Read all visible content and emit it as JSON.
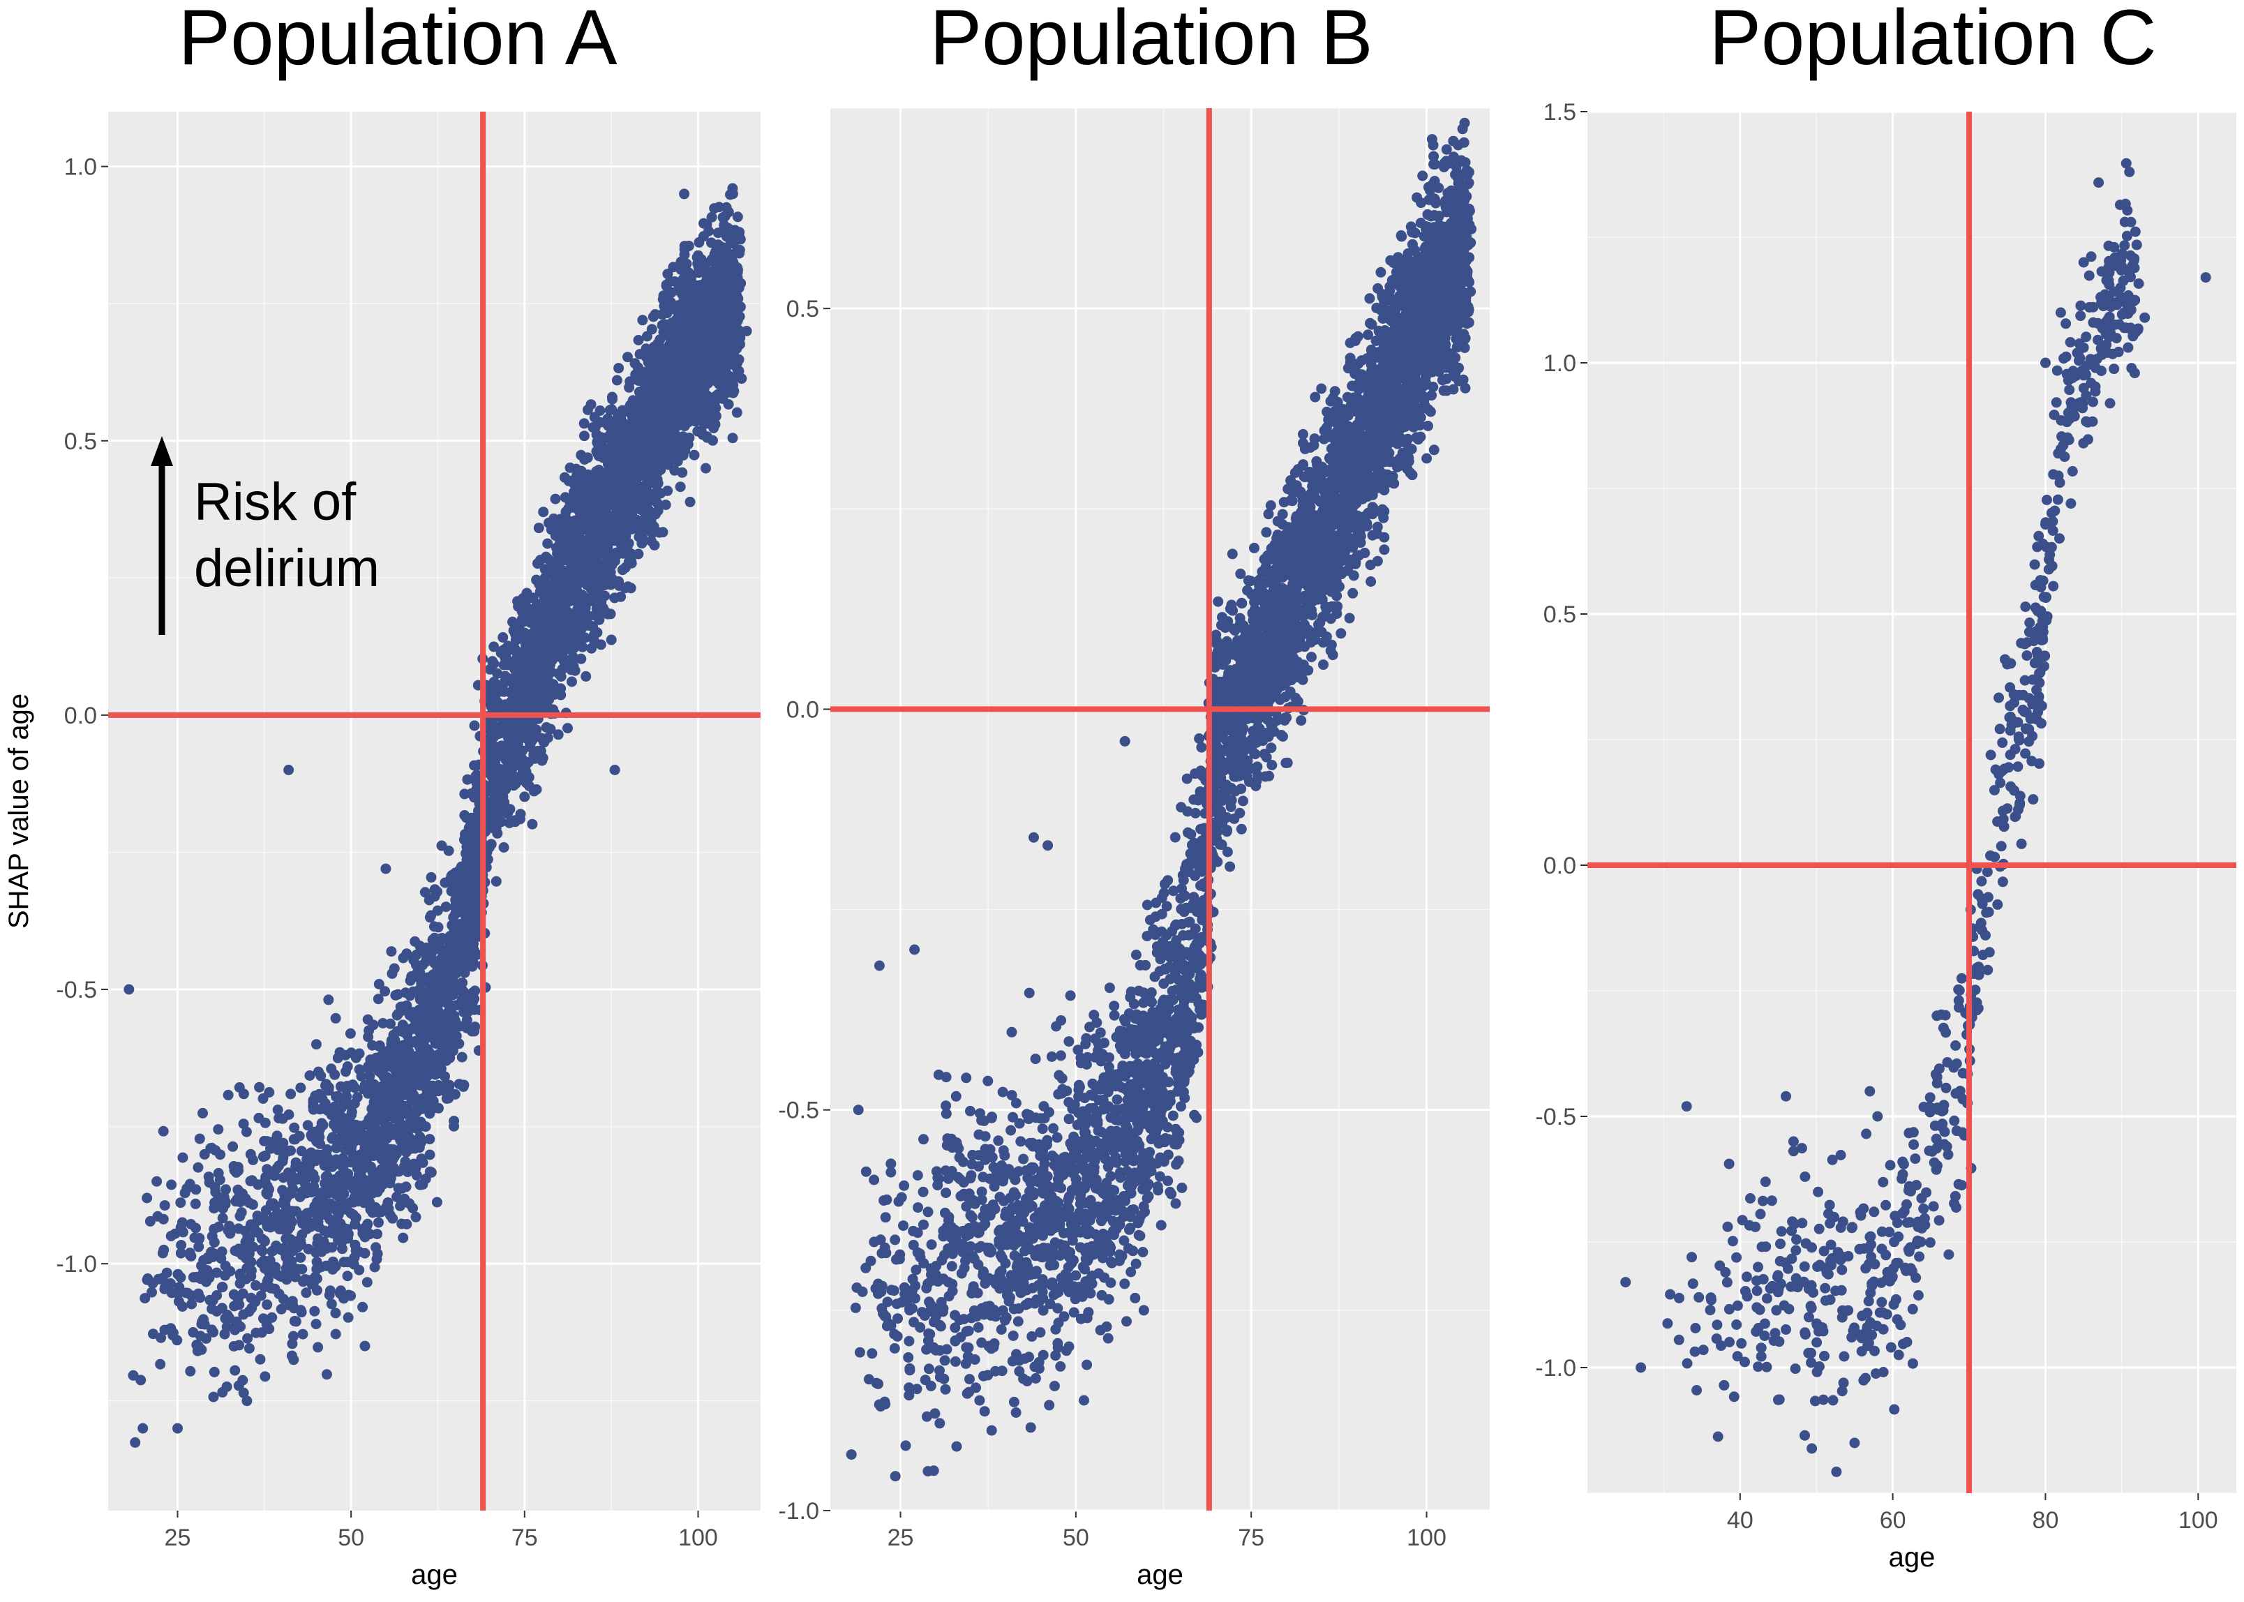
{
  "colors": {
    "panel_background": "#ebebeb",
    "grid_major": "#ffffff",
    "points": "#3b4f8a",
    "reference_lines": "#ef5350",
    "tick_labels": "#4d4d4d",
    "text": "#000000"
  },
  "annotation": {
    "text_line1": "Risk of",
    "text_line2": "delirium",
    "arrow_icon": "up-arrow-icon"
  },
  "chart_data": [
    {
      "type": "scatter",
      "title": "Population A",
      "xlabel": "age",
      "ylabel": "SHAP value of age",
      "xlim": [
        15,
        109
      ],
      "ylim": [
        -1.45,
        1.1
      ],
      "x_ticks": [
        25,
        50,
        75,
        100
      ],
      "x_tick_labels": [
        "25",
        "50",
        "75",
        "100"
      ],
      "y_ticks": [
        -1.0,
        -0.5,
        0.0,
        0.5,
        1.0
      ],
      "y_tick_labels": [
        "-1.0",
        "-0.5",
        "0.0",
        "0.5",
        "1.0"
      ],
      "grid": true,
      "vline_x": 69,
      "hline_y": 0,
      "trend": [
        [
          18,
          -1.05
        ],
        [
          30,
          -0.98
        ],
        [
          40,
          -0.92
        ],
        [
          50,
          -0.83
        ],
        [
          55,
          -0.73
        ],
        [
          60,
          -0.62
        ],
        [
          65,
          -0.46
        ],
        [
          68,
          -0.32
        ],
        [
          70,
          -0.08
        ],
        [
          75,
          0.03
        ],
        [
          80,
          0.2
        ],
        [
          85,
          0.34
        ],
        [
          90,
          0.44
        ],
        [
          95,
          0.58
        ],
        [
          100,
          0.68
        ],
        [
          106,
          0.76
        ]
      ],
      "n_points": 4500,
      "points_sample": [
        [
          18,
          -0.5
        ],
        [
          20,
          -1.3
        ],
        [
          22,
          -0.85
        ],
        [
          25,
          -1.3
        ],
        [
          30,
          -0.95
        ],
        [
          35,
          -1.25
        ],
        [
          41,
          -0.1
        ],
        [
          45,
          -0.6
        ],
        [
          52,
          -1.15
        ],
        [
          55,
          -0.28
        ],
        [
          60,
          -0.75
        ],
        [
          65,
          -0.35
        ],
        [
          70,
          0.05
        ],
        [
          75,
          -0.02
        ],
        [
          80,
          0.26
        ],
        [
          85,
          0.38
        ],
        [
          88,
          -0.1
        ],
        [
          92,
          0.72
        ],
        [
          98,
          0.95
        ],
        [
          104,
          0.85
        ],
        [
          107,
          0.7
        ]
      ]
    },
    {
      "type": "scatter",
      "title": "Population B",
      "xlabel": "age",
      "ylabel": "",
      "xlim": [
        15,
        109
      ],
      "ylim": [
        -1.0,
        0.75
      ],
      "x_ticks": [
        25,
        50,
        75,
        100
      ],
      "x_tick_labels": [
        "25",
        "50",
        "75",
        "100"
      ],
      "y_ticks": [
        -1.0,
        -0.5,
        0.0,
        0.5
      ],
      "y_tick_labels": [
        "-1.0",
        "-0.5",
        "0.0",
        "0.5"
      ],
      "grid": true,
      "vline_x": 69,
      "hline_y": 0,
      "trend": [
        [
          18,
          -0.75
        ],
        [
          30,
          -0.7
        ],
        [
          40,
          -0.65
        ],
        [
          50,
          -0.6
        ],
        [
          55,
          -0.56
        ],
        [
          60,
          -0.48
        ],
        [
          65,
          -0.38
        ],
        [
          68,
          -0.25
        ],
        [
          70,
          -0.04
        ],
        [
          75,
          0.03
        ],
        [
          80,
          0.12
        ],
        [
          85,
          0.22
        ],
        [
          90,
          0.3
        ],
        [
          95,
          0.4
        ],
        [
          100,
          0.5
        ],
        [
          106,
          0.58
        ]
      ],
      "n_points": 4500,
      "points_sample": [
        [
          18,
          -0.93
        ],
        [
          19,
          -0.5
        ],
        [
          22,
          -0.32
        ],
        [
          27,
          -0.3
        ],
        [
          33,
          -0.92
        ],
        [
          38,
          -0.9
        ],
        [
          44,
          -0.16
        ],
        [
          46,
          -0.17
        ],
        [
          57,
          -0.04
        ],
        [
          70,
          -0.05
        ],
        [
          76,
          0.16
        ],
        [
          85,
          0.4
        ],
        [
          92,
          0.18
        ],
        [
          98,
          0.58
        ],
        [
          101,
          0.68
        ],
        [
          106,
          0.62
        ]
      ]
    },
    {
      "type": "scatter",
      "title": "Population C",
      "xlabel": "age",
      "ylabel": "",
      "xlim": [
        20,
        105
      ],
      "ylim": [
        -1.25,
        1.5
      ],
      "x_ticks": [
        40,
        60,
        80,
        100
      ],
      "x_tick_labels": [
        "40",
        "60",
        "80",
        "100"
      ],
      "y_ticks": [
        -1.0,
        -0.5,
        0.0,
        0.5,
        1.0,
        1.5
      ],
      "y_tick_labels": [
        "-1.0",
        "-0.5",
        "0.0",
        "0.5",
        "1.0",
        "1.5"
      ],
      "grid": true,
      "vline_x": 70,
      "hline_y": 0,
      "trend": [
        [
          25,
          -0.9
        ],
        [
          35,
          -0.88
        ],
        [
          45,
          -0.86
        ],
        [
          55,
          -0.86
        ],
        [
          60,
          -0.83
        ],
        [
          63,
          -0.72
        ],
        [
          66,
          -0.52
        ],
        [
          69,
          -0.45
        ],
        [
          70,
          -0.32
        ],
        [
          72,
          -0.05
        ],
        [
          74,
          0.15
        ],
        [
          76,
          0.25
        ],
        [
          78,
          0.33
        ],
        [
          80,
          0.55
        ],
        [
          82,
          0.85
        ],
        [
          85,
          1.0
        ],
        [
          88,
          1.12
        ],
        [
          92,
          1.2
        ]
      ],
      "n_points": 700,
      "points_sample": [
        [
          25,
          -0.83
        ],
        [
          27,
          -1.0
        ],
        [
          33,
          -0.48
        ],
        [
          42,
          -0.72
        ],
        [
          46,
          -0.46
        ],
        [
          47,
          -0.55
        ],
        [
          55,
          -1.15
        ],
        [
          57,
          -0.45
        ],
        [
          58,
          -0.5
        ],
        [
          75,
          0.4
        ],
        [
          80,
          1.0
        ],
        [
          82,
          1.1
        ],
        [
          85,
          1.2
        ],
        [
          89,
          1.23
        ],
        [
          91,
          1.38
        ],
        [
          93,
          1.09
        ],
        [
          101,
          1.17
        ]
      ]
    }
  ]
}
